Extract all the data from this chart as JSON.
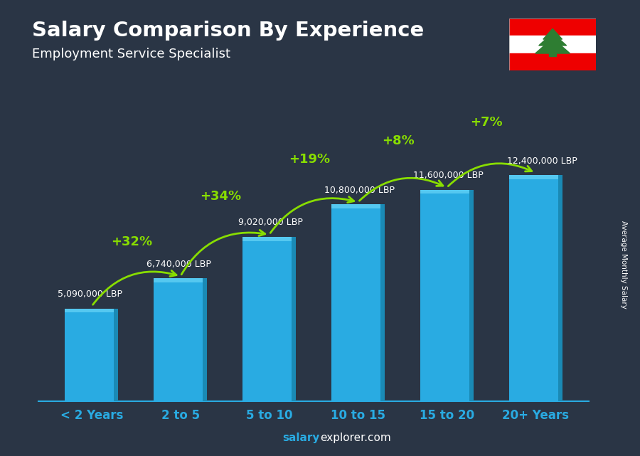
{
  "categories": [
    "< 2 Years",
    "2 to 5",
    "5 to 10",
    "10 to 15",
    "15 to 20",
    "20+ Years"
  ],
  "values": [
    5090000,
    6740000,
    9020000,
    10800000,
    11600000,
    12400000
  ],
  "salary_labels": [
    "5,090,000 LBP",
    "6,740,000 LBP",
    "9,020,000 LBP",
    "10,800,000 LBP",
    "11,600,000 LBP",
    "12,400,000 LBP"
  ],
  "pct_labels": [
    "+32%",
    "+34%",
    "+19%",
    "+8%",
    "+7%"
  ],
  "bar_color_main": "#29ABE2",
  "bar_color_light": "#55C8F0",
  "bar_color_dark": "#1A8AB5",
  "title": "Salary Comparison By Experience",
  "subtitle": "Employment Service Specialist",
  "ylabel": "Average Monthly Salary",
  "footer_bold": "salary",
  "footer_normal": "explorer.com",
  "pct_color": "#88DD00",
  "salary_label_color": "#FFFFFF",
  "title_color": "#FFFFFF",
  "subtitle_color": "#FFFFFF",
  "xtick_color": "#29ABE2",
  "bg_color": "#2a3545",
  "ylim": [
    0,
    15000000
  ],
  "bar_width": 0.6
}
